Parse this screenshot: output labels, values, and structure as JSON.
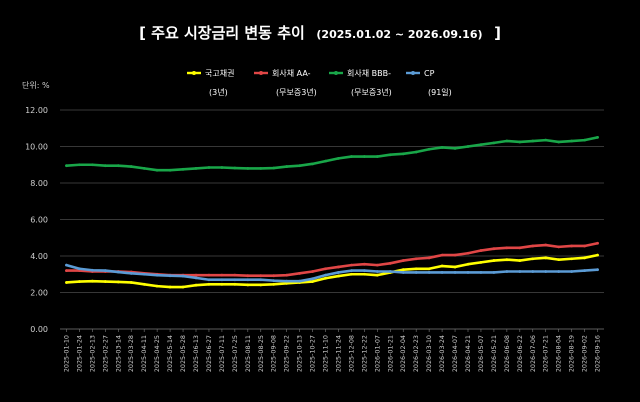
{
  "chart_data": {
    "type": "line",
    "title": "[ 주요 시장금리 변동 추이",
    "title_range": "(2025.01.02 ~ 2026.09.16)",
    "title_close": "]",
    "unit_label": "단위: %",
    "ylim": [
      0,
      12
    ],
    "y_ticks": [
      "0.00",
      "2.00",
      "4.00",
      "6.00",
      "8.00",
      "10.00",
      "12.00"
    ],
    "grid": true,
    "legend_position": "top",
    "x_tick_labels": [
      "2025-01-10",
      "2025-01-24",
      "2025-02-13",
      "2025-02-27",
      "2025-03-14",
      "2025-03-28",
      "2025-04-11",
      "2025-04-25",
      "2025-05-14",
      "2025-05-28",
      "2025-06-13",
      "2025-06-27",
      "2025-07-11",
      "2025-07-25",
      "2025-08-11",
      "2025-08-25",
      "2025-09-08",
      "2025-09-22",
      "2025-10-13",
      "2025-10-27",
      "2025-11-10",
      "2025-11-24",
      "2025-12-08",
      "2025-12-22",
      "2026-01-07",
      "2026-01-21",
      "2026-02-04",
      "2026-02-23",
      "2026-03-10",
      "2026-03-24",
      "2026-04-07",
      "2026-04-21",
      "2026-05-07",
      "2026-05-21",
      "2026-06-08",
      "2026-06-22",
      "2026-07-06",
      "2026-07-21",
      "2026-08-04",
      "2026-08-19",
      "2026-09-02",
      "2026-09-16"
    ],
    "series": [
      {
        "name": "국고채권",
        "sub": "(3년)",
        "color": "#ffff00",
        "values": [
          2.55,
          2.6,
          2.62,
          2.6,
          2.58,
          2.55,
          2.45,
          2.35,
          2.3,
          2.3,
          2.4,
          2.45,
          2.45,
          2.45,
          2.42,
          2.42,
          2.45,
          2.5,
          2.55,
          2.6,
          2.78,
          2.9,
          3.0,
          3.0,
          2.95,
          3.1,
          3.25,
          3.3,
          3.3,
          3.45,
          3.4,
          3.55,
          3.65,
          3.75,
          3.8,
          3.75,
          3.85,
          3.9,
          3.8,
          3.85,
          3.9,
          4.05
        ]
      },
      {
        "name": "회사채 AA-",
        "sub": "(무보증3년)",
        "color": "#e04646",
        "values": [
          3.2,
          3.2,
          3.15,
          3.15,
          3.15,
          3.12,
          3.05,
          3.0,
          2.95,
          2.95,
          2.95,
          2.95,
          2.95,
          2.95,
          2.92,
          2.92,
          2.92,
          2.95,
          3.05,
          3.15,
          3.3,
          3.4,
          3.5,
          3.55,
          3.5,
          3.6,
          3.75,
          3.85,
          3.9,
          4.05,
          4.05,
          4.15,
          4.3,
          4.4,
          4.45,
          4.45,
          4.55,
          4.6,
          4.5,
          4.55,
          4.55,
          4.7
        ]
      },
      {
        "name": "회사채 BBB-",
        "sub": "(무보증3년)",
        "color": "#19a649",
        "values": [
          8.95,
          9.0,
          9.0,
          8.95,
          8.95,
          8.9,
          8.8,
          8.7,
          8.7,
          8.75,
          8.8,
          8.85,
          8.85,
          8.82,
          8.8,
          8.8,
          8.82,
          8.9,
          8.95,
          9.05,
          9.2,
          9.35,
          9.45,
          9.45,
          9.45,
          9.55,
          9.6,
          9.7,
          9.85,
          9.95,
          9.9,
          10.0,
          10.1,
          10.2,
          10.3,
          10.25,
          10.3,
          10.35,
          10.25,
          10.3,
          10.35,
          10.5
        ]
      },
      {
        "name": "CP",
        "sub": "(91일)",
        "color": "#5b9bd5",
        "values": [
          3.5,
          3.3,
          3.22,
          3.2,
          3.12,
          3.05,
          3.0,
          2.95,
          2.92,
          2.9,
          2.8,
          2.7,
          2.7,
          2.7,
          2.7,
          2.7,
          2.65,
          2.62,
          2.62,
          2.75,
          2.95,
          3.1,
          3.2,
          3.2,
          3.15,
          3.15,
          3.1,
          3.1,
          3.1,
          3.1,
          3.1,
          3.1,
          3.1,
          3.1,
          3.15,
          3.15,
          3.15,
          3.15,
          3.15,
          3.15,
          3.2,
          3.25
        ]
      }
    ]
  }
}
